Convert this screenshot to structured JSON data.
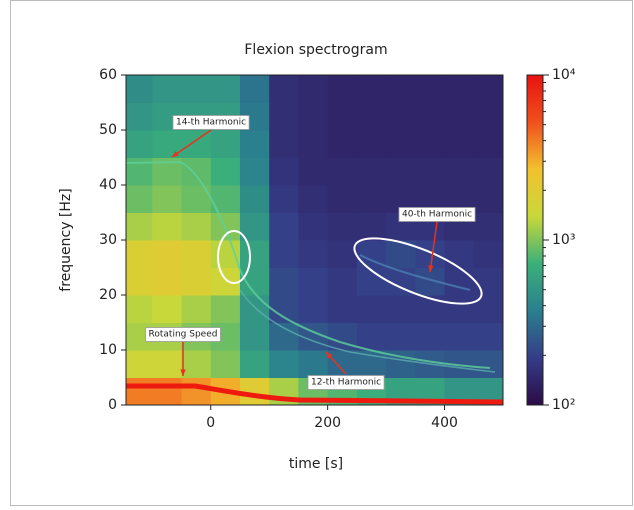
{
  "chart_data": {
    "type": "heatmap",
    "title": "Flexion spectrogram",
    "xlabel": "time [s]",
    "ylabel": "frequency [Hz]",
    "xlim": [
      -145,
      500
    ],
    "xticks": [
      0,
      200,
      400
    ],
    "ylim": [
      0,
      60
    ],
    "yticks": [
      0,
      10,
      20,
      30,
      40,
      50,
      60
    ],
    "x_edges": [
      -145,
      -100,
      -50,
      0,
      50,
      100,
      150,
      200,
      250,
      300,
      350,
      400,
      450,
      500
    ],
    "y_edges": [
      0,
      5,
      10,
      15,
      20,
      25,
      30,
      35,
      40,
      45,
      50,
      55,
      60
    ],
    "z": [
      [
        4000,
        4000,
        3500,
        3000,
        2000,
        1200,
        900,
        800,
        700,
        600,
        600,
        500,
        500
      ],
      [
        1500,
        1500,
        1200,
        1000,
        600,
        400,
        350,
        300,
        300,
        280,
        260,
        250,
        250
      ],
      [
        1200,
        1200,
        1000,
        900,
        500,
        300,
        250,
        220,
        200,
        200,
        200,
        200,
        200
      ],
      [
        1300,
        1400,
        1200,
        1000,
        500,
        220,
        200,
        180,
        180,
        180,
        180,
        180,
        180
      ],
      [
        1800,
        2000,
        1800,
        1500,
        600,
        220,
        200,
        180,
        200,
        200,
        220,
        180,
        180
      ],
      [
        1800,
        2000,
        1800,
        1300,
        600,
        200,
        180,
        170,
        200,
        220,
        200,
        180,
        170
      ],
      [
        1200,
        1300,
        1200,
        1000,
        500,
        200,
        170,
        160,
        160,
        170,
        170,
        160,
        160
      ],
      [
        900,
        1000,
        900,
        800,
        450,
        180,
        160,
        150,
        150,
        150,
        150,
        150,
        150
      ],
      [
        800,
        900,
        850,
        700,
        400,
        170,
        150,
        150,
        150,
        150,
        150,
        150,
        150
      ],
      [
        600,
        650,
        650,
        600,
        380,
        160,
        150,
        140,
        140,
        140,
        140,
        140,
        140
      ],
      [
        500,
        550,
        550,
        550,
        350,
        160,
        150,
        140,
        140,
        140,
        140,
        140,
        140
      ],
      [
        450,
        500,
        500,
        500,
        330,
        160,
        150,
        140,
        140,
        140,
        140,
        140,
        140
      ]
    ],
    "color_scale": "log",
    "clim": [
      100,
      10000
    ],
    "cticks": [
      {
        "value": 100,
        "label": "10²"
      },
      {
        "value": 1000,
        "label": "10³"
      },
      {
        "value": 10000,
        "label": "10⁴"
      }
    ],
    "cticks_minor": [
      200,
      300,
      400,
      500,
      600,
      700,
      800,
      900,
      2000,
      3000,
      4000,
      5000,
      6000,
      7000,
      8000,
      9000
    ],
    "colormap": [
      "#2b0b46",
      "#353d88",
      "#2a7f8e",
      "#3bb07a",
      "#c8d83a",
      "#f2c12e",
      "#f0501e",
      "#e8120f"
    ],
    "annotations": [
      {
        "text": "14-th Harmonic"
      },
      {
        "text": "40-th Harmonic"
      },
      {
        "text": "Rotating Speed"
      },
      {
        "text": "12-th Harmonic"
      }
    ]
  }
}
